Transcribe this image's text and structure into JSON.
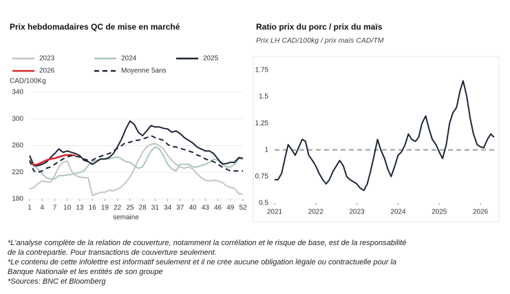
{
  "chart_data": [
    {
      "type": "line",
      "title": "Prix hebdomadaires QC de mise en marché",
      "y_label": "CAD/100Kg",
      "x_label": "semaine",
      "x": [
        1,
        2,
        3,
        4,
        5,
        6,
        7,
        8,
        9,
        10,
        11,
        12,
        13,
        14,
        15,
        16,
        17,
        18,
        19,
        20,
        21,
        22,
        23,
        24,
        25,
        26,
        27,
        28,
        29,
        30,
        31,
        32,
        33,
        34,
        35,
        36,
        37,
        38,
        39,
        40,
        41,
        42,
        43,
        44,
        45,
        46,
        47,
        48,
        49,
        50,
        51,
        52
      ],
      "xlim": [
        1,
        52
      ],
      "xticks": [
        1,
        4,
        7,
        10,
        13,
        16,
        19,
        22,
        25,
        28,
        31,
        34,
        37,
        40,
        43,
        46,
        49,
        52
      ],
      "ylim": [
        180,
        340
      ],
      "yticks": [
        180,
        220,
        260,
        300,
        340
      ],
      "grid": true,
      "series": [
        {
          "name": "2023",
          "color": "#c4c4c4",
          "dashed": false,
          "values": [
            195,
            197,
            203,
            207,
            206,
            205,
            215,
            228,
            235,
            237,
            222,
            215,
            213,
            212,
            212,
            185,
            188,
            190,
            190,
            193,
            192,
            195,
            198,
            205,
            213,
            225,
            238,
            250,
            258,
            262,
            263,
            260,
            255,
            245,
            238,
            232,
            228,
            226,
            228,
            225,
            218,
            212,
            208,
            207,
            208,
            207,
            205,
            200,
            197,
            196,
            188,
            187
          ]
        },
        {
          "name": "2024",
          "color": "#a9c6bc",
          "dashed": false,
          "values": [
            245,
            232,
            225,
            218,
            212,
            210,
            210,
            215,
            215,
            216,
            217,
            218,
            220,
            222,
            230,
            236,
            238,
            240,
            240,
            240,
            242,
            243,
            240,
            236,
            235,
            230,
            226,
            228,
            240,
            252,
            258,
            255,
            245,
            232,
            225,
            222,
            232,
            232,
            232,
            228,
            228,
            230,
            232,
            235,
            240,
            238,
            232,
            228,
            228,
            232,
            240,
            240
          ]
        },
        {
          "name": "2025",
          "color": "#1c2538",
          "dashed": false,
          "values": [
            245,
            230,
            230,
            232,
            235,
            242,
            248,
            255,
            250,
            252,
            250,
            248,
            245,
            238,
            236,
            232,
            236,
            240,
            240,
            242,
            248,
            258,
            270,
            285,
            297,
            292,
            280,
            275,
            282,
            290,
            288,
            288,
            286,
            285,
            280,
            282,
            278,
            272,
            268,
            264,
            258,
            255,
            252,
            252,
            248,
            240,
            233,
            233,
            235,
            235,
            242,
            241
          ]
        },
        {
          "name": "2026",
          "color": "#d7262b",
          "dashed": false,
          "values": [
            236,
            231,
            232,
            235,
            238,
            240,
            241,
            243,
            245,
            246,
            246,
            245,
            null,
            null,
            null,
            null,
            null,
            null,
            null,
            null,
            null,
            null,
            null,
            null,
            null,
            null,
            null,
            null,
            null,
            null,
            null,
            null,
            null,
            null,
            null,
            null,
            null,
            null,
            null,
            null,
            null,
            null,
            null,
            null,
            null,
            null,
            null,
            null,
            null,
            null,
            null,
            null
          ]
        },
        {
          "name": "Moyenne 5ans",
          "color": "#1c2538",
          "dashed": true,
          "values": [
            238,
            222,
            220,
            222,
            226,
            228,
            232,
            236,
            240,
            243,
            245,
            244,
            243,
            240,
            238,
            238,
            242,
            244,
            246,
            248,
            252,
            256,
            260,
            265,
            265,
            268,
            268,
            270,
            272,
            275,
            272,
            270,
            268,
            262,
            258,
            258,
            256,
            254,
            252,
            250,
            246,
            244,
            240,
            238,
            236,
            232,
            228,
            225,
            222,
            222,
            222,
            222
          ]
        }
      ]
    },
    {
      "type": "line",
      "title": "Ratio prix du porc / prix du maïs",
      "subtitle": "Prix LH CAD/100kg / prix maïs CAD/TM",
      "x": [
        2021,
        2021.08,
        2021.17,
        2021.25,
        2021.33,
        2021.42,
        2021.5,
        2021.58,
        2021.67,
        2021.75,
        2021.83,
        2021.92,
        2022,
        2022.08,
        2022.17,
        2022.25,
        2022.33,
        2022.42,
        2022.5,
        2022.58,
        2022.67,
        2022.75,
        2022.83,
        2022.92,
        2023,
        2023.08,
        2023.17,
        2023.25,
        2023.33,
        2023.42,
        2023.5,
        2023.58,
        2023.67,
        2023.75,
        2023.83,
        2023.92,
        2024,
        2024.08,
        2024.17,
        2024.25,
        2024.33,
        2024.42,
        2024.5,
        2024.58,
        2024.67,
        2024.75,
        2024.83,
        2024.92,
        2025,
        2025.08,
        2025.17,
        2025.25,
        2025.33,
        2025.42,
        2025.5,
        2025.58,
        2025.67,
        2025.75,
        2025.83,
        2025.92,
        2026,
        2026.08,
        2026.17,
        2026.25,
        2026.33
      ],
      "xlim": [
        2021,
        2026.35
      ],
      "xticks": [
        2021,
        2022,
        2023,
        2024,
        2025,
        2026
      ],
      "ylim": [
        0.5,
        1.75
      ],
      "yticks": [
        0.5,
        0.75,
        1,
        1.25,
        1.5,
        1.75
      ],
      "grid": false,
      "reference_line": 1,
      "reference_color": "#b0b0b0",
      "series": [
        {
          "color": "#1c2538",
          "dashed": false,
          "values": [
            0.72,
            0.72,
            0.78,
            0.92,
            1.05,
            1.0,
            0.95,
            1.02,
            1.1,
            1.08,
            0.95,
            0.9,
            0.85,
            0.78,
            0.72,
            0.68,
            0.72,
            0.8,
            0.85,
            0.9,
            0.85,
            0.75,
            0.72,
            0.7,
            0.68,
            0.64,
            0.62,
            0.68,
            0.8,
            0.95,
            1.1,
            1.0,
            0.92,
            0.82,
            0.75,
            0.85,
            0.95,
            0.98,
            1.05,
            1.15,
            1.1,
            1.08,
            1.12,
            1.25,
            1.32,
            1.2,
            1.1,
            1.05,
            0.98,
            0.92,
            1.05,
            1.25,
            1.35,
            1.4,
            1.55,
            1.65,
            1.5,
            1.3,
            1.15,
            1.05,
            1.03,
            1.02,
            1.1,
            1.15,
            1.12
          ]
        }
      ]
    }
  ],
  "notes": [
    "*L'analyse complète de la relation de couverture, notamment la corrélation et le risque de base, est de la responsabilité",
    "de la contrepartie. Pour transactions de couverture seulement.",
    "*Le contenu de cette infolettre est informatif seulement et il ne crée aucune obligation légale ou contractuelle pour la",
    "Banque Nationale et les entités de son groupe",
    "*Sources: BNC et Bloomberg"
  ]
}
